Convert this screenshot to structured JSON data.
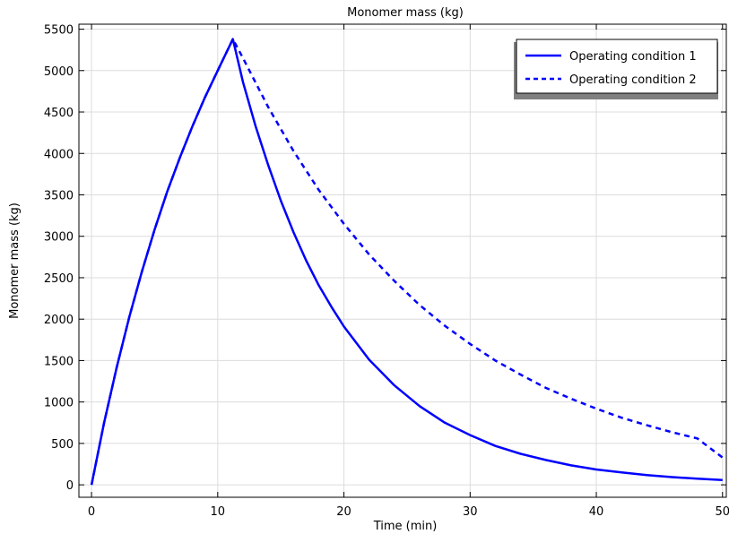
{
  "chart_data": {
    "type": "line",
    "title": "Monomer mass (kg)",
    "xlabel": "Time (min)",
    "ylabel": "Monomer mass (kg)",
    "xlim": [
      -1,
      50.3
    ],
    "ylim": [
      -150,
      5560
    ],
    "x_ticks": [
      0,
      10,
      20,
      30,
      40,
      50
    ],
    "y_ticks": [
      0,
      500,
      1000,
      1500,
      2000,
      2500,
      3000,
      3500,
      4000,
      4500,
      5000,
      5500
    ],
    "grid": true,
    "legend_position": "top-right",
    "series": [
      {
        "name": "Operating condition 1",
        "style": "solid",
        "color": "#0000ff",
        "x": [
          0,
          1,
          2,
          3,
          4,
          5,
          6,
          7,
          8,
          9,
          10,
          11.2,
          12,
          13,
          14,
          15,
          16,
          17,
          18,
          19,
          20,
          22,
          24,
          26,
          28,
          30,
          32,
          34,
          36,
          38,
          40,
          42,
          44,
          46,
          48,
          50
        ],
        "y": [
          0,
          750,
          1420,
          2030,
          2580,
          3080,
          3540,
          3950,
          4330,
          4680,
          5000,
          5380,
          4860,
          4330,
          3860,
          3430,
          3050,
          2710,
          2410,
          2150,
          1910,
          1510,
          1200,
          950,
          750,
          600,
          470,
          375,
          300,
          235,
          185,
          150,
          118,
          93,
          74,
          58
        ]
      },
      {
        "name": "Operating condition 2",
        "style": "dashed",
        "color": "#0000ff",
        "x": [
          0,
          1,
          2,
          3,
          4,
          5,
          6,
          7,
          8,
          9,
          10,
          11.2,
          12,
          14,
          16,
          18,
          20,
          22,
          24,
          26,
          28,
          30,
          32,
          34,
          36,
          38,
          40,
          42,
          44,
          46,
          48,
          50
        ],
        "y": [
          0,
          750,
          1420,
          2030,
          2580,
          3080,
          3540,
          3950,
          4330,
          4680,
          5000,
          5380,
          5150,
          4560,
          4030,
          3560,
          3150,
          2780,
          2460,
          2170,
          1920,
          1700,
          1500,
          1330,
          1170,
          1040,
          920,
          810,
          720,
          635,
          560,
          330
        ]
      }
    ]
  }
}
